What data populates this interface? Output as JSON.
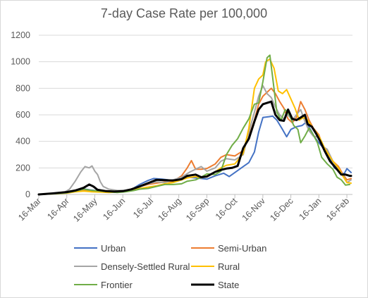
{
  "chart_data": {
    "type": "line",
    "title": "7-day Case Rate per 100,000",
    "xlabel": "",
    "ylabel": "",
    "ylim": [
      0,
      1200
    ],
    "yticks": [
      0,
      200,
      400,
      600,
      800,
      1000,
      1200
    ],
    "xtick_labels": [
      "16-Mar",
      "16-Apr",
      "16-May",
      "16-Jun",
      "16-Jul",
      "16-Aug",
      "16-Sep",
      "16-Oct",
      "16-Nov",
      "16-Dec",
      "16-Jan",
      "16-Feb"
    ],
    "grid": true,
    "legend": "bottom",
    "x_unit": "months since 16-Mar",
    "series": [
      {
        "name": "Urban",
        "color": "#4472C4",
        "width": 2,
        "points": [
          [
            0,
            0
          ],
          [
            0.5,
            8
          ],
          [
            1,
            20
          ],
          [
            1.3,
            30
          ],
          [
            1.6,
            42
          ],
          [
            1.8,
            35
          ],
          [
            2,
            30
          ],
          [
            2.3,
            25
          ],
          [
            2.6,
            22
          ],
          [
            3,
            25
          ],
          [
            3.3,
            35
          ],
          [
            3.6,
            75
          ],
          [
            3.9,
            105
          ],
          [
            4.1,
            120
          ],
          [
            4.4,
            115
          ],
          [
            4.7,
            108
          ],
          [
            5,
            115
          ],
          [
            5.3,
            130
          ],
          [
            5.6,
            125
          ],
          [
            6,
            115
          ],
          [
            6.3,
            140
          ],
          [
            6.6,
            160
          ],
          [
            6.8,
            135
          ],
          [
            7,
            165
          ],
          [
            7.3,
            210
          ],
          [
            7.5,
            240
          ],
          [
            7.7,
            320
          ],
          [
            7.85,
            470
          ],
          [
            8,
            580
          ],
          [
            8.2,
            585
          ],
          [
            8.35,
            590
          ],
          [
            8.5,
            560
          ],
          [
            8.7,
            490
          ],
          [
            8.85,
            435
          ],
          [
            9,
            490
          ],
          [
            9.2,
            510
          ],
          [
            9.4,
            520
          ],
          [
            9.55,
            545
          ],
          [
            9.7,
            490
          ],
          [
            9.85,
            430
          ],
          [
            10,
            390
          ],
          [
            10.2,
            340
          ],
          [
            10.4,
            270
          ],
          [
            10.55,
            200
          ],
          [
            10.7,
            180
          ],
          [
            10.8,
            165
          ],
          [
            10.9,
            155
          ],
          [
            11,
            195
          ],
          [
            11.15,
            165
          ]
        ]
      },
      {
        "name": "Semi-Urban",
        "color": "#ED7D31",
        "width": 2,
        "points": [
          [
            0,
            0
          ],
          [
            0.5,
            8
          ],
          [
            1,
            15
          ],
          [
            1.3,
            25
          ],
          [
            1.6,
            32
          ],
          [
            1.9,
            25
          ],
          [
            2.2,
            22
          ],
          [
            2.5,
            20
          ],
          [
            2.8,
            22
          ],
          [
            3.1,
            30
          ],
          [
            3.4,
            45
          ],
          [
            3.6,
            60
          ],
          [
            3.9,
            75
          ],
          [
            4.2,
            85
          ],
          [
            4.5,
            95
          ],
          [
            4.8,
            100
          ],
          [
            5.1,
            140
          ],
          [
            5.3,
            200
          ],
          [
            5.45,
            255
          ],
          [
            5.6,
            190
          ],
          [
            5.8,
            190
          ],
          [
            6,
            195
          ],
          [
            6.3,
            230
          ],
          [
            6.5,
            280
          ],
          [
            6.7,
            300
          ],
          [
            7,
            290
          ],
          [
            7.3,
            330
          ],
          [
            7.5,
            440
          ],
          [
            7.7,
            560
          ],
          [
            7.85,
            680
          ],
          [
            8,
            740
          ],
          [
            8.15,
            770
          ],
          [
            8.3,
            800
          ],
          [
            8.45,
            760
          ],
          [
            8.6,
            700
          ],
          [
            8.75,
            650
          ],
          [
            8.9,
            570
          ],
          [
            9.05,
            540
          ],
          [
            9.2,
            580
          ],
          [
            9.35,
            700
          ],
          [
            9.5,
            640
          ],
          [
            9.65,
            560
          ],
          [
            9.8,
            500
          ],
          [
            10,
            450
          ],
          [
            10.15,
            360
          ],
          [
            10.3,
            330
          ],
          [
            10.5,
            250
          ],
          [
            10.7,
            210
          ],
          [
            10.85,
            155
          ],
          [
            11,
            110
          ],
          [
            11.15,
            120
          ]
        ]
      },
      {
        "name": "Densely-Settled Rural",
        "color": "#A5A5A5",
        "width": 2,
        "points": [
          [
            0,
            0
          ],
          [
            0.5,
            5
          ],
          [
            0.9,
            15
          ],
          [
            1.1,
            40
          ],
          [
            1.3,
            100
          ],
          [
            1.5,
            170
          ],
          [
            1.65,
            210
          ],
          [
            1.8,
            200
          ],
          [
            1.9,
            215
          ],
          [
            2,
            175
          ],
          [
            2.1,
            150
          ],
          [
            2.2,
            95
          ],
          [
            2.3,
            60
          ],
          [
            2.5,
            40
          ],
          [
            2.8,
            30
          ],
          [
            3.1,
            30
          ],
          [
            3.4,
            45
          ],
          [
            3.6,
            60
          ],
          [
            3.9,
            80
          ],
          [
            4.2,
            95
          ],
          [
            4.5,
            90
          ],
          [
            4.8,
            110
          ],
          [
            5.1,
            130
          ],
          [
            5.4,
            170
          ],
          [
            5.6,
            190
          ],
          [
            5.8,
            210
          ],
          [
            6,
            175
          ],
          [
            6.3,
            200
          ],
          [
            6.5,
            250
          ],
          [
            6.7,
            270
          ],
          [
            7,
            260
          ],
          [
            7.3,
            300
          ],
          [
            7.5,
            470
          ],
          [
            7.7,
            620
          ],
          [
            7.85,
            740
          ],
          [
            8,
            820
          ],
          [
            8.15,
            760
          ],
          [
            8.3,
            730
          ],
          [
            8.45,
            660
          ],
          [
            8.6,
            600
          ],
          [
            8.75,
            570
          ],
          [
            8.9,
            600
          ],
          [
            9.05,
            560
          ],
          [
            9.2,
            600
          ],
          [
            9.35,
            640
          ],
          [
            9.5,
            550
          ],
          [
            9.65,
            480
          ],
          [
            9.8,
            440
          ],
          [
            10,
            430
          ],
          [
            10.15,
            360
          ],
          [
            10.3,
            340
          ],
          [
            10.5,
            250
          ],
          [
            10.7,
            190
          ],
          [
            10.85,
            150
          ],
          [
            11,
            90
          ],
          [
            11.15,
            110
          ]
        ]
      },
      {
        "name": "Rural",
        "color": "#FFC000",
        "width": 2,
        "points": [
          [
            0,
            0
          ],
          [
            0.5,
            5
          ],
          [
            1,
            10
          ],
          [
            1.3,
            20
          ],
          [
            1.6,
            25
          ],
          [
            1.9,
            20
          ],
          [
            2.2,
            18
          ],
          [
            2.5,
            15
          ],
          [
            2.8,
            18
          ],
          [
            3.1,
            25
          ],
          [
            3.4,
            35
          ],
          [
            3.6,
            45
          ],
          [
            3.9,
            55
          ],
          [
            4.2,
            65
          ],
          [
            4.5,
            80
          ],
          [
            4.8,
            90
          ],
          [
            5.1,
            110
          ],
          [
            5.3,
            125
          ],
          [
            5.6,
            135
          ],
          [
            5.8,
            125
          ],
          [
            6,
            140
          ],
          [
            6.3,
            170
          ],
          [
            6.5,
            200
          ],
          [
            6.7,
            220
          ],
          [
            7,
            230
          ],
          [
            7.3,
            310
          ],
          [
            7.5,
            500
          ],
          [
            7.7,
            800
          ],
          [
            7.85,
            870
          ],
          [
            8,
            900
          ],
          [
            8.1,
            1000
          ],
          [
            8.25,
            1020
          ],
          [
            8.4,
            950
          ],
          [
            8.55,
            780
          ],
          [
            8.7,
            760
          ],
          [
            8.85,
            790
          ],
          [
            9,
            720
          ],
          [
            9.15,
            650
          ],
          [
            9.3,
            560
          ],
          [
            9.45,
            580
          ],
          [
            9.6,
            560
          ],
          [
            9.75,
            510
          ],
          [
            9.9,
            470
          ],
          [
            10.05,
            420
          ],
          [
            10.2,
            350
          ],
          [
            10.35,
            300
          ],
          [
            10.5,
            250
          ],
          [
            10.7,
            200
          ],
          [
            10.85,
            140
          ],
          [
            11,
            90
          ],
          [
            11.15,
            85
          ]
        ]
      },
      {
        "name": "Frontier",
        "color": "#70AD47",
        "width": 2,
        "points": [
          [
            0,
            0
          ],
          [
            0.5,
            5
          ],
          [
            1,
            12
          ],
          [
            1.3,
            25
          ],
          [
            1.6,
            40
          ],
          [
            1.9,
            30
          ],
          [
            2.2,
            25
          ],
          [
            2.5,
            20
          ],
          [
            2.8,
            15
          ],
          [
            3.1,
            20
          ],
          [
            3.4,
            30
          ],
          [
            3.6,
            40
          ],
          [
            3.9,
            45
          ],
          [
            4.2,
            60
          ],
          [
            4.5,
            75
          ],
          [
            4.8,
            75
          ],
          [
            5.1,
            80
          ],
          [
            5.3,
            100
          ],
          [
            5.6,
            110
          ],
          [
            5.8,
            130
          ],
          [
            6,
            155
          ],
          [
            6.3,
            150
          ],
          [
            6.5,
            175
          ],
          [
            6.7,
            300
          ],
          [
            6.9,
            370
          ],
          [
            7.1,
            420
          ],
          [
            7.3,
            500
          ],
          [
            7.5,
            570
          ],
          [
            7.7,
            680
          ],
          [
            7.85,
            690
          ],
          [
            8,
            850
          ],
          [
            8.15,
            1030
          ],
          [
            8.25,
            1050
          ],
          [
            8.35,
            880
          ],
          [
            8.5,
            620
          ],
          [
            8.65,
            560
          ],
          [
            8.8,
            640
          ],
          [
            8.95,
            600
          ],
          [
            9.1,
            520
          ],
          [
            9.25,
            490
          ],
          [
            9.35,
            390
          ],
          [
            9.5,
            440
          ],
          [
            9.65,
            500
          ],
          [
            9.8,
            450
          ],
          [
            9.95,
            390
          ],
          [
            10.1,
            280
          ],
          [
            10.3,
            230
          ],
          [
            10.5,
            190
          ],
          [
            10.65,
            130
          ],
          [
            10.8,
            110
          ],
          [
            10.95,
            70
          ],
          [
            11.1,
            75
          ]
        ]
      },
      {
        "name": "State",
        "color": "#000000",
        "width": 3,
        "points": [
          [
            0,
            0
          ],
          [
            0.5,
            8
          ],
          [
            1,
            18
          ],
          [
            1.3,
            30
          ],
          [
            1.6,
            50
          ],
          [
            1.8,
            75
          ],
          [
            1.95,
            60
          ],
          [
            2.1,
            35
          ],
          [
            2.4,
            25
          ],
          [
            2.7,
            22
          ],
          [
            3,
            25
          ],
          [
            3.3,
            38
          ],
          [
            3.6,
            60
          ],
          [
            3.9,
            85
          ],
          [
            4.2,
            110
          ],
          [
            4.5,
            108
          ],
          [
            4.8,
            105
          ],
          [
            5.1,
            115
          ],
          [
            5.3,
            140
          ],
          [
            5.6,
            150
          ],
          [
            5.8,
            130
          ],
          [
            6,
            135
          ],
          [
            6.3,
            170
          ],
          [
            6.5,
            185
          ],
          [
            6.7,
            195
          ],
          [
            6.9,
            200
          ],
          [
            7.1,
            215
          ],
          [
            7.3,
            350
          ],
          [
            7.5,
            420
          ],
          [
            7.7,
            550
          ],
          [
            7.85,
            640
          ],
          [
            8,
            680
          ],
          [
            8.15,
            690
          ],
          [
            8.3,
            700
          ],
          [
            8.45,
            600
          ],
          [
            8.6,
            560
          ],
          [
            8.75,
            555
          ],
          [
            8.9,
            640
          ],
          [
            9.05,
            570
          ],
          [
            9.2,
            560
          ],
          [
            9.35,
            580
          ],
          [
            9.5,
            600
          ],
          [
            9.6,
            530
          ],
          [
            9.75,
            510
          ],
          [
            9.9,
            460
          ],
          [
            10.05,
            400
          ],
          [
            10.2,
            330
          ],
          [
            10.4,
            250
          ],
          [
            10.6,
            200
          ],
          [
            10.8,
            150
          ],
          [
            10.95,
            150
          ],
          [
            11.1,
            140
          ],
          [
            11.15,
            140
          ]
        ]
      }
    ]
  }
}
